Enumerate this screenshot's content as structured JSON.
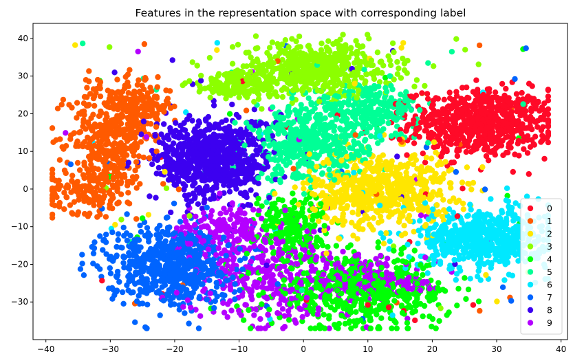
{
  "chart_data": {
    "type": "scatter",
    "title": "Features in the representation space with corresponding label",
    "xlabel": "",
    "ylabel": "",
    "xlim": [
      -42,
      41
    ],
    "ylim": [
      -40,
      44
    ],
    "xticks": [
      -40,
      -30,
      -20,
      -10,
      0,
      10,
      20,
      30,
      40
    ],
    "yticks": [
      -30,
      -20,
      -10,
      0,
      10,
      20,
      30,
      40
    ],
    "grid": false,
    "legend_position": "lower-right",
    "series": [
      {
        "name": "0",
        "color": "#ff0a28",
        "clusters": [
          {
            "cx": 27.5,
            "cy": 17.5,
            "sx": 5.5,
            "sy": 4.5,
            "n": 700
          }
        ]
      },
      {
        "name": "1",
        "color": "#ff5a00",
        "clusters": [
          {
            "cx": -30,
            "cy": 14.5,
            "sx": 3.2,
            "sy": 7.0,
            "n": 380
          },
          {
            "cx": -33,
            "cy": 0,
            "sx": 3.5,
            "sy": 3.2,
            "n": 180
          },
          {
            "cx": -25,
            "cy": 22,
            "sx": 2.2,
            "sy": 3.0,
            "n": 150
          }
        ]
      },
      {
        "name": "2",
        "color": "#ffe600",
        "clusters": [
          {
            "cx": 12,
            "cy": 0,
            "sx": 5.5,
            "sy": 5.0,
            "n": 650
          }
        ]
      },
      {
        "name": "3",
        "color": "#8cff00",
        "clusters": [
          {
            "cx": 2,
            "cy": 32,
            "sx": 6.0,
            "sy": 3.6,
            "n": 560
          },
          {
            "cx": -10,
            "cy": 27.5,
            "sx": 4.0,
            "sy": 2.0,
            "n": 150
          }
        ]
      },
      {
        "name": "4",
        "color": "#00ff05",
        "clusters": [
          {
            "cx": 9,
            "cy": -27.5,
            "sx": 7.0,
            "sy": 4.5,
            "n": 520
          },
          {
            "cx": -2,
            "cy": -10,
            "sx": 2.8,
            "sy": 4.5,
            "n": 200
          }
        ]
      },
      {
        "name": "5",
        "color": "#00ff96",
        "clusters": [
          {
            "cx": 1,
            "cy": 12,
            "sx": 4.5,
            "sy": 5.0,
            "n": 480
          },
          {
            "cx": 10,
            "cy": 21,
            "sx": 4.0,
            "sy": 3.5,
            "n": 260
          }
        ]
      },
      {
        "name": "6",
        "color": "#00e8ff",
        "clusters": [
          {
            "cx": 28,
            "cy": -13,
            "sx": 5.0,
            "sy": 4.0,
            "n": 600
          }
        ]
      },
      {
        "name": "7",
        "color": "#0064ff",
        "clusters": [
          {
            "cx": -21,
            "cy": -20,
            "sx": 4.8,
            "sy": 5.5,
            "n": 650
          }
        ]
      },
      {
        "name": "8",
        "color": "#3c00f0",
        "clusters": [
          {
            "cx": -14,
            "cy": 8,
            "sx": 4.5,
            "sy": 5.5,
            "n": 700
          }
        ]
      },
      {
        "name": "9",
        "color": "#b400ff",
        "clusters": [
          {
            "cx": -6,
            "cy": -23,
            "sx": 6.0,
            "sy": 6.5,
            "n": 380
          },
          {
            "cx": 9,
            "cy": -24,
            "sx": 3.5,
            "sy": 3.0,
            "n": 170
          },
          {
            "cx": -12,
            "cy": -10,
            "sx": 3.5,
            "sy": 2.5,
            "n": 130
          },
          {
            "cx": 17,
            "cy": -25,
            "sx": 1.5,
            "sy": 1.5,
            "n": 40
          }
        ]
      }
    ]
  }
}
